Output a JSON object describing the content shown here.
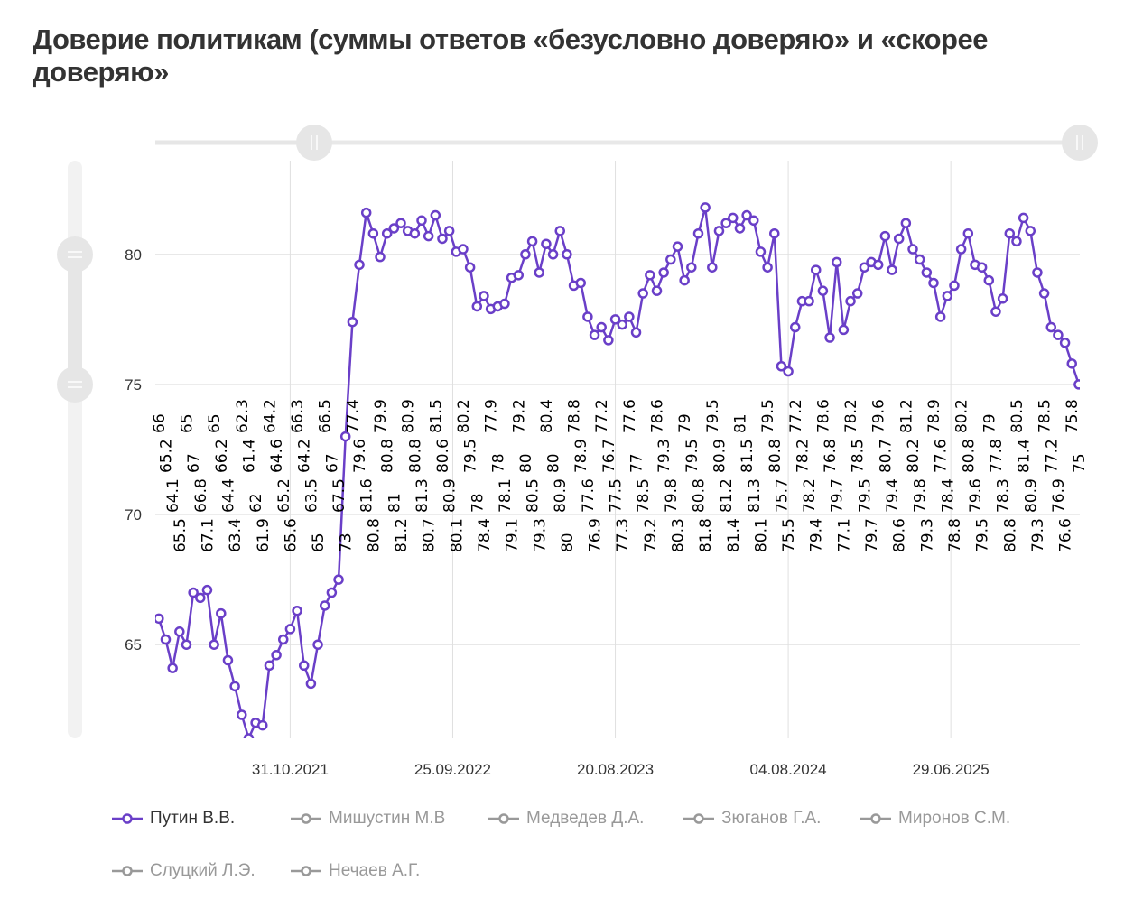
{
  "title": "Доверие политикам (суммы ответов «безусловно доверяю» и «скорее доверяю»",
  "colors": {
    "active": "#6a3fc8",
    "inactive": "#999999",
    "grid": "#e0e0e0",
    "navigator": "#e6e6e6"
  },
  "chart_data": {
    "type": "line",
    "title": "Доверие политикам (суммы ответов «безусловно доверяю» и «скорее доверяю»",
    "ylim": [
      61.4,
      83.6
    ],
    "yticks": [
      65,
      70,
      75,
      80
    ],
    "xticks": [
      "31.10.2021",
      "25.09.2022",
      "20.08.2023",
      "04.08.2024",
      "29.06.2025"
    ],
    "xtick_dates": [
      "2021-10-31",
      "2022-09-25",
      "2023-08-20",
      "2024-08-04",
      "2025-06-29"
    ],
    "xlim": [
      "2021-01-31",
      "2026-03-17"
    ],
    "grid": true,
    "legend_placement": "bottom-left",
    "data_labels": true,
    "x": [
      "2021-02-07",
      "2021-02-21",
      "2021-03-07",
      "2021-03-21",
      "2021-04-04",
      "2021-04-18",
      "2021-05-02",
      "2021-05-16",
      "2021-05-30",
      "2021-06-13",
      "2021-06-27",
      "2021-07-11",
      "2021-07-25",
      "2021-08-08",
      "2021-08-22",
      "2021-09-05",
      "2021-09-19",
      "2021-10-03",
      "2021-10-17",
      "2021-10-31",
      "2021-11-14",
      "2021-11-28",
      "2021-12-12",
      "2021-12-26",
      "2022-01-09",
      "2022-01-23",
      "2022-02-06",
      "2022-02-20",
      "2022-03-06",
      "2022-03-20",
      "2022-04-03",
      "2022-04-17",
      "2022-05-01",
      "2022-05-15",
      "2022-05-29",
      "2022-06-12",
      "2022-06-26",
      "2022-07-10",
      "2022-07-24",
      "2022-08-07",
      "2022-08-21",
      "2022-09-04",
      "2022-09-18",
      "2022-10-02",
      "2022-10-16",
      "2022-10-30",
      "2022-11-13",
      "2022-11-27",
      "2022-12-11",
      "2022-12-25",
      "2023-01-08",
      "2023-01-22",
      "2023-02-05",
      "2023-02-19",
      "2023-03-05",
      "2023-03-19",
      "2023-04-02",
      "2023-04-16",
      "2023-04-30",
      "2023-05-14",
      "2023-05-28",
      "2023-06-11",
      "2023-06-25",
      "2023-07-09",
      "2023-07-23",
      "2023-08-06",
      "2023-08-20",
      "2023-09-03",
      "2023-09-17",
      "2023-10-01",
      "2023-10-15",
      "2023-10-29",
      "2023-11-12",
      "2023-11-26",
      "2023-12-10",
      "2023-12-24",
      "2024-01-07",
      "2024-01-21",
      "2024-02-04",
      "2024-02-18",
      "2024-03-03",
      "2024-03-17",
      "2024-03-31",
      "2024-04-14",
      "2024-04-28",
      "2024-05-12",
      "2024-05-26",
      "2024-06-09",
      "2024-06-23",
      "2024-07-07",
      "2024-07-21",
      "2024-08-04",
      "2024-08-18",
      "2024-09-01",
      "2024-09-15",
      "2024-09-29",
      "2024-10-13",
      "2024-10-27",
      "2024-11-10",
      "2024-11-24",
      "2024-12-08",
      "2024-12-22",
      "2025-01-05",
      "2025-01-19",
      "2025-02-02",
      "2025-02-16",
      "2025-03-02",
      "2025-03-16",
      "2025-03-30",
      "2025-04-13",
      "2025-04-27",
      "2025-05-11",
      "2025-05-25",
      "2025-06-08",
      "2025-06-22",
      "2025-07-06",
      "2025-07-20",
      "2025-08-03",
      "2025-08-17",
      "2025-08-31",
      "2025-09-14",
      "2025-09-28",
      "2025-10-12",
      "2025-10-26",
      "2025-11-09",
      "2025-11-23",
      "2025-12-07",
      "2025-12-21",
      "2026-01-04",
      "2026-01-18",
      "2026-02-01",
      "2026-02-15",
      "2026-03-01",
      "2026-03-15"
    ],
    "series": [
      {
        "name": "Путин В.В.",
        "visible": true,
        "values": [
          66.0,
          65.2,
          64.1,
          65.5,
          65.0,
          67.0,
          66.8,
          67.1,
          65.0,
          66.2,
          64.4,
          63.4,
          62.3,
          61.4,
          62.0,
          61.9,
          64.2,
          64.6,
          65.2,
          65.6,
          66.3,
          64.2,
          63.5,
          65.0,
          66.5,
          67.0,
          67.5,
          73,
          77.4,
          79.6,
          81.6,
          80.8,
          79.9,
          80.8,
          81.0,
          81.2,
          80.9,
          80.8,
          81.3,
          80.7,
          81.5,
          80.6,
          80.9,
          80.1,
          80.2,
          79.5,
          78.0,
          78.4,
          77.9,
          78.0,
          78.1,
          79.1,
          79.2,
          80.0,
          80.5,
          79.3,
          80.4,
          80.0,
          80.9,
          80.0,
          78.8,
          78.9,
          77.6,
          76.9,
          77.2,
          76.7,
          77.5,
          77.3,
          77.6,
          77.0,
          78.5,
          79.2,
          78.6,
          79.3,
          79.8,
          80.3,
          79.0,
          79.5,
          80.8,
          81.8,
          79.5,
          80.9,
          81.2,
          81.4,
          81.0,
          81.5,
          81.3,
          80.1,
          79.5,
          80.8,
          75.7,
          75.5,
          77.2,
          78.2,
          78.2,
          79.4,
          78.6,
          76.8,
          79.7,
          77.1,
          78.2,
          78.5,
          79.5,
          79.7,
          79.6,
          80.7,
          79.4,
          80.6,
          81.2,
          80.2,
          79.8,
          79.3,
          78.9,
          77.6,
          78.4,
          78.8,
          80.2,
          80.8,
          79.6,
          79.5,
          79.0,
          77.8,
          78.3,
          80.8,
          80.5,
          81.4,
          80.9,
          79.3,
          78.5,
          77.2,
          76.9,
          76.6,
          75.8,
          75.0
        ]
      },
      {
        "name": "Мишустин М.В",
        "visible": false
      },
      {
        "name": "Медведев Д.А.",
        "visible": false
      },
      {
        "name": "Зюганов Г.А.",
        "visible": false
      },
      {
        "name": "Миронов С.М.",
        "visible": false
      },
      {
        "name": "Слуцкий Л.Э.",
        "visible": false
      },
      {
        "name": "Нечаев А.Г.",
        "visible": false
      }
    ]
  }
}
